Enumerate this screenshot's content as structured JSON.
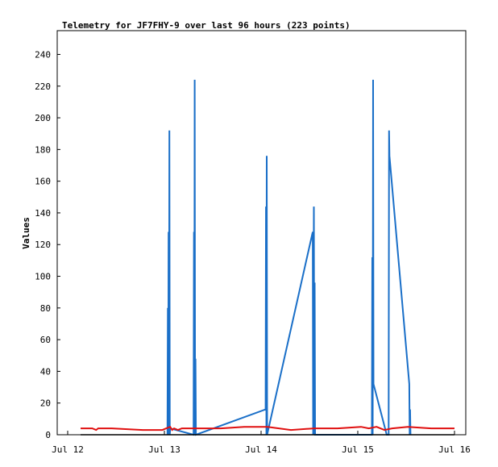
{
  "chart_data": {
    "type": "line",
    "title": "Telemetry for JF7FHY-9 over last 96 hours (223 points)",
    "xlabel": "",
    "ylabel": "Values",
    "ylim": [
      0,
      255
    ],
    "xlim_hours": [
      0,
      96
    ],
    "x_unit": "hours since Jul 12 00:00",
    "xticks": [
      {
        "label": "Jul 12",
        "value": 0
      },
      {
        "label": "Jul 13",
        "value": 24
      },
      {
        "label": "Jul 14",
        "value": 48
      },
      {
        "label": "Jul 15",
        "value": 72
      },
      {
        "label": "Jul 16",
        "value": 96
      }
    ],
    "yticks": [
      0,
      20,
      40,
      60,
      80,
      100,
      120,
      140,
      160,
      180,
      200,
      220,
      240
    ],
    "grid": false,
    "series": [
      {
        "name": "",
        "color": "#1a6fc8",
        "x": [
          22.3,
          22.4,
          22.5,
          22.6,
          22.7,
          22.8,
          22.9,
          23.0,
          29.0,
          29.1,
          29.2,
          29.3,
          29.4,
          29.5,
          29.6,
          47.5,
          47.6,
          47.7,
          47.8,
          47.9,
          59.6,
          59.7,
          59.8,
          59.9,
          60.0,
          60.1,
          60.2,
          74.8,
          74.9,
          75.0,
          75.1,
          75.2,
          78.6,
          79.1,
          79.2,
          79.3,
          84.4,
          84.5,
          84.6,
          84.7
        ],
        "y": [
          0,
          80,
          0,
          128,
          0,
          192,
          0,
          4,
          0,
          128,
          0,
          224,
          0,
          48,
          0,
          16,
          144,
          0,
          176,
          0,
          128,
          0,
          64,
          144,
          0,
          96,
          0,
          0,
          112,
          0,
          224,
          32,
          0,
          0,
          192,
          176,
          32,
          0,
          16,
          0
        ]
      },
      {
        "name": "",
        "color": "#e01010",
        "x": [
          0,
          3,
          4,
          4.5,
          5,
          8,
          16,
          18,
          20,
          21,
          22,
          23,
          23.5,
          24,
          25,
          26,
          27,
          30,
          36,
          42,
          48,
          54,
          60,
          66,
          72,
          74,
          76,
          78,
          80,
          84,
          90,
          96
        ],
        "y": [
          4,
          4,
          3,
          4,
          4,
          4,
          3,
          3,
          3,
          3,
          4,
          5,
          3,
          4,
          3,
          4,
          4,
          4,
          4,
          5,
          5,
          3,
          4,
          4,
          5,
          4,
          5,
          3,
          4,
          5,
          4,
          4
        ]
      },
      {
        "name": "",
        "color": "#000000",
        "x": [
          0,
          96
        ],
        "y": [
          0,
          0
        ]
      }
    ]
  }
}
